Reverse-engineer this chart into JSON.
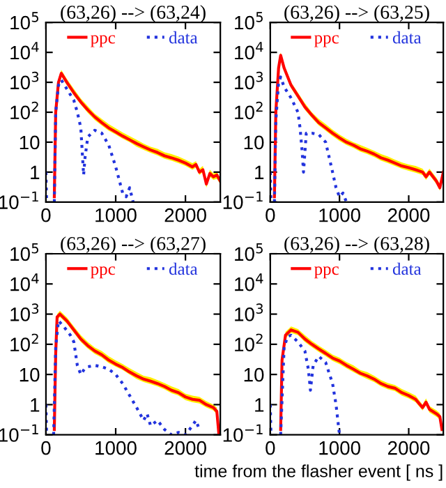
{
  "chart_data": [
    {
      "type": "line",
      "title": "(63,26) --> (63,24)",
      "xlim": [
        0,
        2500
      ],
      "xticks": [
        0,
        1000,
        2000
      ],
      "ylim": [
        0.1,
        100000
      ],
      "log": true,
      "legend": "top",
      "yticks": [
        {
          "value": 0.1,
          "label": "10$^{−1}$"
        },
        1,
        10,
        {
          "value": 100,
          "label": "10$^{2}$"
        },
        {
          "value": 1000,
          "label": "10$^{3}$"
        },
        {
          "value": 10000,
          "label": "10$^{4}$"
        },
        {
          "value": 100000,
          "label": "10$^{5}$"
        }
      ],
      "series": [
        {
          "name": "ppc",
          "color": "#ff0000",
          "line_style": "solid",
          "x": [
            120,
            140,
            180,
            220,
            300,
            400,
            500,
            600,
            700,
            800,
            900,
            1000,
            1100,
            1200,
            1300,
            1400,
            1500,
            1600,
            1700,
            1800,
            1900,
            2000,
            2100,
            2150,
            2200,
            2250,
            2300,
            2350,
            2400,
            2450,
            2500
          ],
          "values": [
            0.15,
            100,
            1000,
            2000,
            1000,
            450,
            220,
            120,
            70,
            45,
            30,
            22,
            16,
            12,
            9,
            7,
            5.5,
            4.5,
            3.5,
            3,
            2.5,
            2,
            1.5,
            1.8,
            1,
            1.2,
            0.4,
            0.9,
            0.7,
            0.8,
            0.5
          ],
          "lower": [
            0.12,
            80,
            800,
            1600,
            800,
            360,
            180,
            95,
            55,
            36,
            24,
            18,
            13,
            10,
            7,
            5.5,
            4.4,
            3.6,
            2.8,
            2.4,
            2,
            1.6,
            1.2,
            1.4,
            0.8,
            1,
            0.3,
            0.7,
            0.55,
            0.6,
            0.4
          ],
          "upper": [
            0.2,
            130,
            1300,
            2600,
            1300,
            600,
            290,
            160,
            90,
            60,
            40,
            29,
            21,
            16,
            12,
            9,
            7,
            6,
            4.6,
            4,
            3.3,
            2.6,
            2,
            2.3,
            1.3,
            1.6,
            0.5,
            1.2,
            0.9,
            1,
            0.65
          ]
        },
        {
          "name": "data",
          "color": "#2233dd",
          "line_style": "dotted",
          "x": [
            0,
            10,
            20,
            120,
            140,
            180,
            220,
            300,
            400,
            450,
            500,
            540,
            560,
            600,
            700,
            800,
            900,
            1000,
            1100,
            1150,
            1200,
            1250
          ],
          "values": [
            1,
            0.1,
            null,
            0.1,
            100,
            800,
            1200,
            600,
            250,
            100,
            30,
            0.8,
            3,
            15,
            25,
            20,
            8,
            1.5,
            0.2,
            0.15,
            0.3,
            0.1
          ]
        }
      ]
    },
    {
      "type": "line",
      "title": "(63,26) --> (63,25)",
      "xlim": [
        0,
        2500
      ],
      "xticks": [
        0,
        1000,
        2000
      ],
      "ylim": [
        0.1,
        100000
      ],
      "log": true,
      "legend": "top",
      "yticks": [
        {
          "value": 0.1,
          "label": "10$^{−1}$"
        },
        1,
        10,
        {
          "value": 100,
          "label": "10$^{2}$"
        },
        {
          "value": 1000,
          "label": "10$^{3}$"
        },
        {
          "value": 10000,
          "label": "10$^{4}$"
        },
        {
          "value": 100000,
          "label": "10$^{5}$"
        }
      ],
      "series": [
        {
          "name": "ppc",
          "color": "#ff0000",
          "line_style": "solid",
          "x": [
            60,
            80,
            120,
            150,
            200,
            300,
            400,
            500,
            600,
            700,
            800,
            900,
            1000,
            1100,
            1200,
            1300,
            1400,
            1500,
            1600,
            1700,
            1800,
            1900,
            2000,
            2100,
            2200,
            2250,
            2300,
            2400,
            2450,
            2500
          ],
          "values": [
            0.15,
            100,
            3000,
            8000,
            3000,
            800,
            350,
            150,
            80,
            45,
            30,
            20,
            14,
            10,
            8,
            6,
            5,
            4,
            3,
            2.5,
            2,
            1.6,
            1.4,
            1.2,
            1,
            0.7,
            1,
            0.5,
            0.3,
            1
          ],
          "lower": [
            0.12,
            80,
            2400,
            6400,
            2400,
            640,
            280,
            120,
            64,
            36,
            24,
            16,
            11,
            8,
            6.4,
            4.8,
            4,
            3.2,
            2.4,
            2,
            1.6,
            1.3,
            1.1,
            0.95,
            0.8,
            0.55,
            0.8,
            0.4,
            0.24,
            0.8
          ],
          "upper": [
            0.2,
            130,
            3900,
            10000,
            3900,
            1000,
            450,
            200,
            100,
            60,
            40,
            26,
            18,
            13,
            10,
            8,
            6.5,
            5.2,
            4,
            3.3,
            2.6,
            2.1,
            1.8,
            1.6,
            1.3,
            0.9,
            1.3,
            0.65,
            0.4,
            1.3
          ]
        },
        {
          "name": "data",
          "color": "#2233dd",
          "line_style": "dotted",
          "x": [
            0,
            10,
            20,
            60,
            80,
            120,
            150,
            200,
            300,
            400,
            430,
            460,
            480,
            520,
            600,
            700,
            800,
            900,
            950,
            1000,
            1050,
            1100
          ],
          "values": [
            1,
            0.1,
            null,
            0.1,
            50,
            1000,
            1500,
            700,
            300,
            100,
            30,
            5,
            1,
            20,
            20,
            18,
            10,
            1,
            0.3,
            0.15,
            0.2,
            0.1
          ]
        }
      ]
    },
    {
      "type": "line",
      "title": "(63,26) --> (63,27)",
      "xlim": [
        0,
        2500
      ],
      "xticks": [
        0,
        1000,
        2000
      ],
      "ylim": [
        0.1,
        100000
      ],
      "log": true,
      "legend": "top",
      "yticks": [
        {
          "value": 0.1,
          "label": "10$^{−1}$"
        },
        1,
        10,
        {
          "value": 100,
          "label": "10$^{2}$"
        },
        {
          "value": 1000,
          "label": "10$^{3}$"
        },
        {
          "value": 10000,
          "label": "10$^{4}$"
        },
        {
          "value": 100000,
          "label": "10$^{5}$"
        }
      ],
      "series": [
        {
          "name": "ppc",
          "color": "#ff0000",
          "line_style": "solid",
          "x": [
            120,
            140,
            160,
            200,
            300,
            400,
            500,
            600,
            700,
            800,
            900,
            1000,
            1100,
            1200,
            1300,
            1400,
            1500,
            1600,
            1700,
            1800,
            1900,
            2000,
            2100,
            2200,
            2300,
            2400,
            2450,
            2480
          ],
          "values": [
            0.15,
            50,
            800,
            1000,
            600,
            300,
            150,
            90,
            60,
            45,
            30,
            22,
            17,
            12,
            9,
            7,
            6,
            5,
            4,
            3,
            2.5,
            1.8,
            1.5,
            1.4,
            1,
            0.8,
            0.6,
            0.1
          ],
          "lower": [
            0.12,
            40,
            640,
            800,
            480,
            240,
            120,
            72,
            48,
            36,
            24,
            18,
            14,
            10,
            7,
            5.6,
            4.8,
            4,
            3.2,
            2.4,
            2,
            1.4,
            1.2,
            1.1,
            0.8,
            0.64,
            0.48,
            0.1
          ],
          "upper": [
            0.2,
            65,
            1000,
            1300,
            780,
            390,
            200,
            120,
            78,
            60,
            40,
            29,
            22,
            16,
            12,
            9,
            8,
            6.5,
            5.2,
            4,
            3.3,
            2.3,
            2,
            1.8,
            1.3,
            1,
            0.8,
            0.13
          ]
        },
        {
          "name": "data",
          "color": "#2233dd",
          "line_style": "dotted",
          "x": [
            0,
            10,
            20,
            110,
            140,
            180,
            250,
            350,
            400,
            450,
            500,
            550,
            600,
            700,
            800,
            900,
            1000,
            1100,
            1200,
            1300,
            1400,
            1450,
            1500,
            1600,
            1700,
            1800,
            1900,
            2000,
            2100,
            2150,
            2200
          ],
          "values": [
            1,
            0.1,
            null,
            0.1,
            80,
            600,
            400,
            200,
            120,
            20,
            10,
            15,
            18,
            20,
            18,
            15,
            10,
            5,
            2,
            0.8,
            0.3,
            0.5,
            0.2,
            0.3,
            0.15,
            0.1,
            0.12,
            0.1,
            0.2,
            0.3,
            0.15
          ]
        }
      ]
    },
    {
      "type": "line",
      "title": "(63,26) --> (63,28)",
      "xlabel": "time from the flasher event [ ns ]",
      "xlim": [
        0,
        2500
      ],
      "xticks": [
        0,
        1000,
        2000
      ],
      "ylim": [
        0.1,
        100000
      ],
      "log": true,
      "legend": "top",
      "yticks": [
        {
          "value": 0.1,
          "label": "10$^{−1}$"
        },
        1,
        10,
        {
          "value": 100,
          "label": "10$^{2}$"
        },
        {
          "value": 1000,
          "label": "10$^{3}$"
        },
        {
          "value": 10000,
          "label": "10$^{4}$"
        },
        {
          "value": 100000,
          "label": "10$^{5}$"
        }
      ],
      "series": [
        {
          "name": "ppc",
          "color": "#ff0000",
          "line_style": "solid",
          "x": [
            150,
            170,
            220,
            300,
            400,
            500,
            600,
            700,
            800,
            900,
            1000,
            1100,
            1200,
            1300,
            1400,
            1500,
            1600,
            1700,
            1800,
            1900,
            2000,
            2100,
            2200,
            2250,
            2300,
            2400,
            2450,
            2480
          ],
          "values": [
            0.15,
            30,
            200,
            300,
            250,
            150,
            100,
            70,
            50,
            35,
            28,
            20,
            15,
            11,
            9,
            7,
            5,
            4,
            3.5,
            2.5,
            2,
            1.5,
            0.8,
            1.2,
            0.7,
            0.5,
            0.4,
            0.15
          ],
          "lower": [
            0.12,
            24,
            160,
            240,
            200,
            120,
            80,
            56,
            40,
            28,
            22,
            16,
            12,
            9,
            7,
            5.6,
            4,
            3.2,
            2.8,
            2,
            1.6,
            1.2,
            0.64,
            0.95,
            0.55,
            0.4,
            0.32,
            0.12
          ],
          "upper": [
            0.2,
            40,
            260,
            390,
            320,
            200,
            130,
            90,
            65,
            45,
            36,
            26,
            20,
            14,
            12,
            9,
            6.5,
            5.2,
            4.5,
            3.3,
            2.6,
            2,
            1,
            1.6,
            0.9,
            0.65,
            0.52,
            0.2
          ]
        },
        {
          "name": "data",
          "color": "#2233dd",
          "line_style": "dotted",
          "x": [
            0,
            10,
            20,
            150,
            200,
            250,
            300,
            400,
            500,
            550,
            580,
            620,
            700,
            800,
            900,
            950,
            1000
          ],
          "values": [
            1,
            0.1,
            null,
            0.1,
            80,
            180,
            200,
            120,
            60,
            15,
            3,
            20,
            40,
            25,
            5,
            1,
            0.1
          ]
        }
      ]
    }
  ]
}
